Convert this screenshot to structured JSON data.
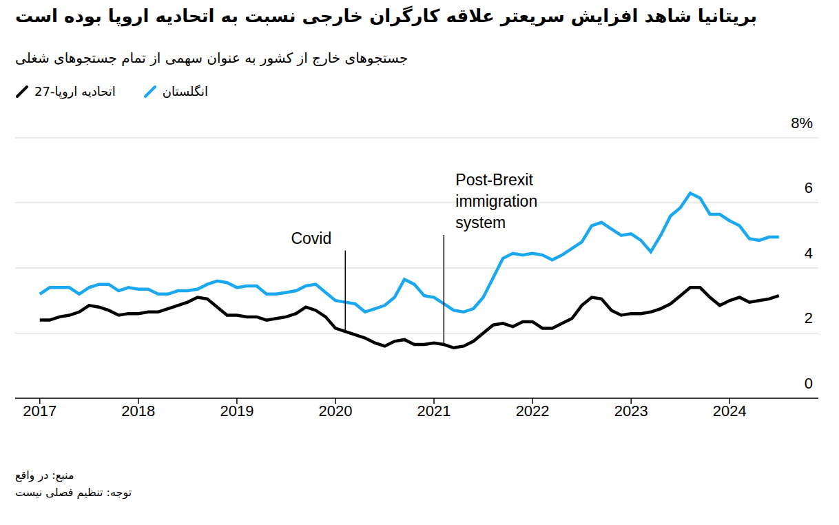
{
  "chart_data": {
    "type": "line",
    "title": "بریتانیا شاهد افزایش سریعتر علاقه کارگران خارجی نسبت به اتحادیه اروپا بوده است",
    "subtitle": "جستجوهای خارج از کشور به عنوان سهمی از تمام جستجوهای شغلی",
    "x": [
      2017,
      2017.1,
      2017.2,
      2017.3,
      2017.4,
      2017.5,
      2017.6,
      2017.7,
      2017.8,
      2017.9,
      2018,
      2018.1,
      2018.2,
      2018.3,
      2018.4,
      2018.5,
      2018.6,
      2018.7,
      2018.8,
      2018.9,
      2019,
      2019.1,
      2019.2,
      2019.3,
      2019.4,
      2019.5,
      2019.6,
      2019.7,
      2019.8,
      2019.9,
      2020,
      2020.1,
      2020.2,
      2020.3,
      2020.4,
      2020.5,
      2020.6,
      2020.7,
      2020.8,
      2020.9,
      2021,
      2021.1,
      2021.2,
      2021.3,
      2021.4,
      2021.5,
      2021.6,
      2021.7,
      2021.8,
      2021.9,
      2022,
      2022.1,
      2022.2,
      2022.3,
      2022.4,
      2022.5,
      2022.6,
      2022.7,
      2022.8,
      2022.9,
      2023,
      2023.1,
      2023.2,
      2023.3,
      2023.4,
      2023.5,
      2023.6,
      2023.7,
      2023.8,
      2023.9,
      2024,
      2024.1,
      2024.2,
      2024.3,
      2024.4,
      2024.5
    ],
    "series": [
      {
        "name": "انگلستان",
        "color": "#1ba8f0",
        "values": [
          3.2,
          3.4,
          3.4,
          3.4,
          3.2,
          3.4,
          3.5,
          3.5,
          3.3,
          3.4,
          3.35,
          3.35,
          3.2,
          3.2,
          3.3,
          3.3,
          3.35,
          3.5,
          3.6,
          3.55,
          3.4,
          3.45,
          3.45,
          3.2,
          3.2,
          3.25,
          3.3,
          3.45,
          3.5,
          3.25,
          3.0,
          2.95,
          2.9,
          2.65,
          2.75,
          2.85,
          3.1,
          3.65,
          3.5,
          3.15,
          3.1,
          2.9,
          2.7,
          2.65,
          2.75,
          3.1,
          3.7,
          4.3,
          4.45,
          4.4,
          4.45,
          4.4,
          4.25,
          4.4,
          4.6,
          4.8,
          5.3,
          5.4,
          5.2,
          5.0,
          5.05,
          4.85,
          4.5,
          5.0,
          5.6,
          5.85,
          6.3,
          6.15,
          5.65,
          5.65,
          5.45,
          5.3,
          4.9,
          4.85,
          4.95,
          4.95
        ]
      },
      {
        "name": "اتحادیه اروپا-27",
        "color": "#000000",
        "values": [
          2.4,
          2.4,
          2.5,
          2.55,
          2.65,
          2.85,
          2.8,
          2.7,
          2.55,
          2.6,
          2.6,
          2.65,
          2.65,
          2.75,
          2.85,
          2.95,
          3.1,
          3.05,
          2.8,
          2.55,
          2.55,
          2.5,
          2.5,
          2.4,
          2.45,
          2.5,
          2.6,
          2.8,
          2.7,
          2.5,
          2.15,
          2.05,
          1.95,
          1.85,
          1.7,
          1.6,
          1.75,
          1.8,
          1.65,
          1.65,
          1.7,
          1.65,
          1.55,
          1.6,
          1.75,
          2.0,
          2.25,
          2.3,
          2.2,
          2.35,
          2.35,
          2.15,
          2.15,
          2.3,
          2.45,
          2.85,
          3.1,
          3.05,
          2.7,
          2.55,
          2.6,
          2.6,
          2.65,
          2.75,
          2.9,
          3.15,
          3.4,
          3.4,
          3.1,
          2.85,
          3.0,
          3.1,
          2.95,
          3.0,
          3.05,
          3.15
        ]
      }
    ],
    "xlim": [
      2016.75,
      2024.9
    ],
    "xticks": [
      2017,
      2018,
      2019,
      2020,
      2021,
      2022,
      2023,
      2024
    ],
    "ylim": [
      0,
      8
    ],
    "yticks": [
      0,
      2,
      4,
      6,
      {
        "value": 8,
        "label": "8%"
      }
    ],
    "grid": true,
    "legend": "top-left",
    "annotations": [
      {
        "text": "Covid",
        "x": 2020.1
      },
      {
        "text": "Post-Brexit immigration system",
        "x": 2021.1
      }
    ],
    "source": "منبع: در واقع",
    "note": "توجه: تنظیم فصلی نیست"
  }
}
